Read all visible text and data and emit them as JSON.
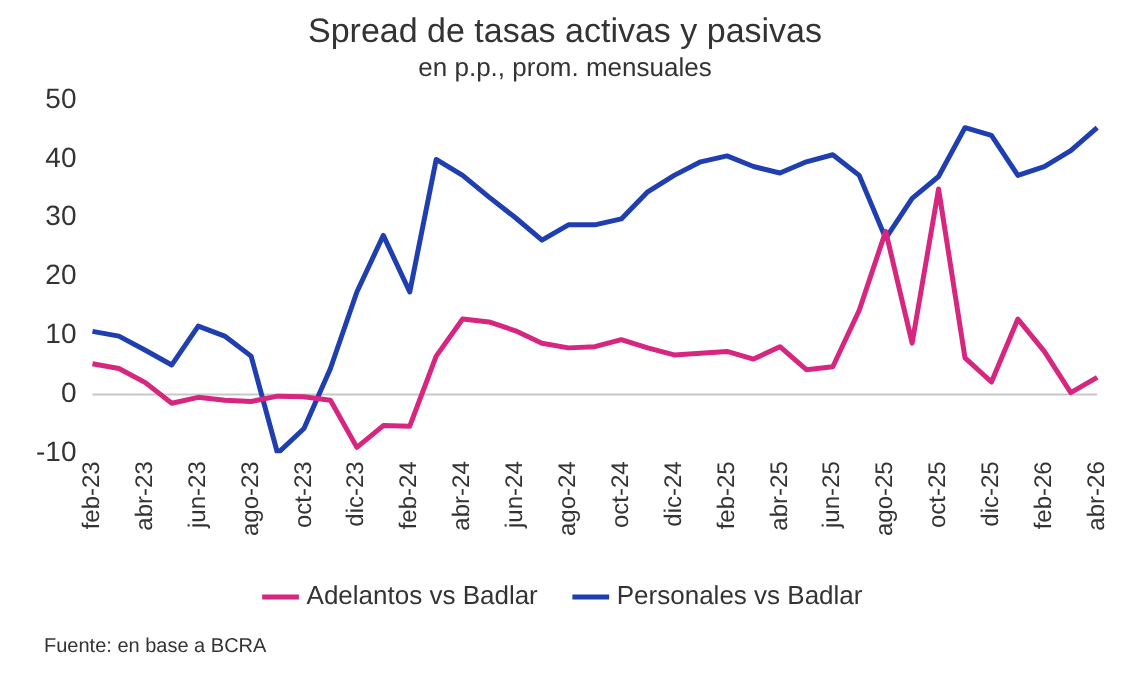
{
  "chart_data": {
    "type": "line",
    "title": "Spread de tasas activas y pasivas",
    "subtitle": "en p.p., prom. mensuales",
    "categories": [
      "feb-23",
      null,
      "abr-23",
      null,
      "jun-23",
      null,
      "ago-23",
      null,
      "oct-23",
      null,
      "dic-23",
      null,
      "feb-24",
      null,
      "abr-24",
      null,
      "jun-24",
      null,
      "ago-24",
      null,
      "oct-24",
      null,
      "dic-24",
      null,
      "feb-25",
      null,
      "abr-25",
      null,
      "jun-25",
      null,
      "ago-25",
      null,
      "oct-25",
      null,
      "dic-25",
      null,
      "feb-26",
      null,
      "abr-26"
    ],
    "series": [
      {
        "name": "Adelantos vs Badlar",
        "color": "#d6267f",
        "values": [
          5.2,
          4.4,
          2,
          -1.5,
          -0.5,
          -1,
          -1.2,
          -0.3,
          -0.4,
          -1,
          -9,
          -5.3,
          -5.4,
          6.5,
          12.8,
          12.3,
          10.8,
          8.7,
          7.9,
          8.1,
          9.3,
          7.9,
          6.7,
          7,
          7.3,
          6,
          8.1,
          4.2,
          4.7,
          14.3,
          27.7,
          8.7,
          34.9,
          6.2,
          2.1,
          12.8,
          7.3,
          0.3,
          2.9
        ]
      },
      {
        "name": "Personales vs Badlar",
        "color": "#1f3fb0",
        "values": [
          10.7,
          9.9,
          7.5,
          5,
          11.6,
          9.9,
          6.5,
          -10,
          -5.8,
          4.4,
          17.4,
          27,
          17.4,
          39.9,
          37.2,
          33.5,
          30,
          26.2,
          28.8,
          28.8,
          29.8,
          34.4,
          37.2,
          39.5,
          40.5,
          38.7,
          37.6,
          39.5,
          40.7,
          37.2,
          26.5,
          33.3,
          37,
          45.3,
          44,
          37.2,
          38.7,
          41.4,
          45.3
        ]
      }
    ],
    "ylim": [
      -10,
      50
    ],
    "yticks": [
      -10,
      0,
      10,
      20,
      30,
      40,
      50
    ],
    "grid": false,
    "legend": "bottom",
    "marker": "none",
    "line_style": "solid",
    "ref_lines": [
      {
        "axis": "y",
        "value": 0,
        "color": "#c8c8c8"
      }
    ],
    "annotations": [
      "Fuente: en base a BCRA"
    ]
  }
}
